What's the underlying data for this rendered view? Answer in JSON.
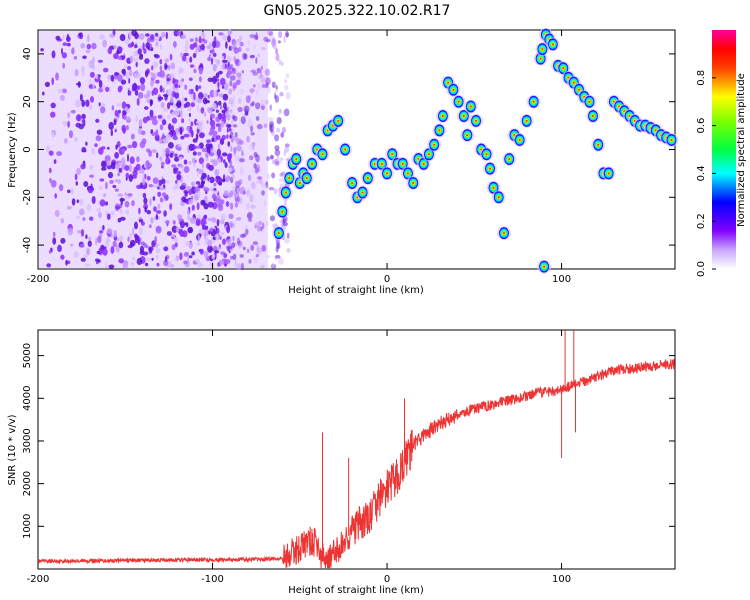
{
  "title": "GN05.2025.322.10.02.R17",
  "chart_data": [
    {
      "type": "heatmap",
      "xlabel": "Height of straight line (km)",
      "ylabel": "Frequency (Hz)",
      "xlim": [
        -200,
        165
      ],
      "ylim": [
        -50,
        50
      ],
      "x_ticks": [
        -200,
        -100,
        0,
        100
      ],
      "y_ticks": [
        -40,
        -20,
        0,
        20,
        40
      ],
      "colorbar": {
        "label": "Normalized spectral amplitude",
        "range": [
          0,
          1
        ],
        "ticks": [
          0,
          0.2,
          0.4,
          0.6,
          0.8
        ],
        "tick_labels": [
          "0.0",
          "0.2",
          "0.4",
          "0.6",
          "0.8"
        ],
        "colors": [
          "#ffffff",
          "#8000ff",
          "#0000ff",
          "#00ffff",
          "#00ff00",
          "#ffff00",
          "#ff0000",
          "#ff00ff"
        ]
      },
      "noise_region_x": [
        -200,
        -62
      ],
      "ridge": [
        {
          "x": -62,
          "f": -35
        },
        {
          "x": -60,
          "f": -26
        },
        {
          "x": -58,
          "f": -18
        },
        {
          "x": -56,
          "f": -12
        },
        {
          "x": -54,
          "f": -6
        },
        {
          "x": -52,
          "f": -4
        },
        {
          "x": -50,
          "f": -14
        },
        {
          "x": -48,
          "f": -10
        },
        {
          "x": -46,
          "f": -12
        },
        {
          "x": -43,
          "f": -6
        },
        {
          "x": -40,
          "f": 0
        },
        {
          "x": -37,
          "f": -2
        },
        {
          "x": -34,
          "f": 8
        },
        {
          "x": -31,
          "f": 10
        },
        {
          "x": -28,
          "f": 12
        },
        {
          "x": -24,
          "f": 0
        },
        {
          "x": -20,
          "f": -14
        },
        {
          "x": -17,
          "f": -20
        },
        {
          "x": -14,
          "f": -18
        },
        {
          "x": -11,
          "f": -12
        },
        {
          "x": -7,
          "f": -6
        },
        {
          "x": -3,
          "f": -6
        },
        {
          "x": 0,
          "f": -10
        },
        {
          "x": 3,
          "f": -2
        },
        {
          "x": 6,
          "f": -6
        },
        {
          "x": 9,
          "f": -6
        },
        {
          "x": 12,
          "f": -10
        },
        {
          "x": 15,
          "f": -14
        },
        {
          "x": 18,
          "f": -4
        },
        {
          "x": 21,
          "f": -6
        },
        {
          "x": 24,
          "f": -2
        },
        {
          "x": 27,
          "f": 2
        },
        {
          "x": 30,
          "f": 8
        },
        {
          "x": 32,
          "f": 14
        },
        {
          "x": 35,
          "f": 28
        },
        {
          "x": 38,
          "f": 25
        },
        {
          "x": 41,
          "f": 20
        },
        {
          "x": 44,
          "f": 14
        },
        {
          "x": 46,
          "f": 6
        },
        {
          "x": 48,
          "f": 18
        },
        {
          "x": 51,
          "f": 12
        },
        {
          "x": 54,
          "f": 0
        },
        {
          "x": 57,
          "f": -2
        },
        {
          "x": 59,
          "f": -8
        },
        {
          "x": 61,
          "f": -16
        },
        {
          "x": 64,
          "f": -20
        },
        {
          "x": 67,
          "f": -35
        },
        {
          "x": 70,
          "f": -4
        },
        {
          "x": 73,
          "f": 6
        },
        {
          "x": 76,
          "f": 4
        },
        {
          "x": 80,
          "f": 12
        },
        {
          "x": 84,
          "f": 20
        },
        {
          "x": 88,
          "f": 38
        },
        {
          "x": 91,
          "f": 48
        },
        {
          "x": 93,
          "f": 46
        },
        {
          "x": 95,
          "f": 44
        },
        {
          "x": 98,
          "f": 35
        },
        {
          "x": 101,
          "f": 34
        },
        {
          "x": 104,
          "f": 30
        },
        {
          "x": 107,
          "f": 28
        },
        {
          "x": 110,
          "f": 25
        },
        {
          "x": 113,
          "f": 22
        },
        {
          "x": 116,
          "f": 20
        },
        {
          "x": 118,
          "f": 14
        },
        {
          "x": 121,
          "f": 2
        },
        {
          "x": 124,
          "f": -10
        },
        {
          "x": 127,
          "f": -10
        },
        {
          "x": 130,
          "f": 20
        },
        {
          "x": 133,
          "f": 18
        },
        {
          "x": 136,
          "f": 16
        },
        {
          "x": 139,
          "f": 14
        },
        {
          "x": 142,
          "f": 12
        },
        {
          "x": 145,
          "f": 10
        },
        {
          "x": 148,
          "f": 10
        },
        {
          "x": 151,
          "f": 9
        },
        {
          "x": 154,
          "f": 8
        },
        {
          "x": 157,
          "f": 6
        },
        {
          "x": 160,
          "f": 5
        },
        {
          "x": 163,
          "f": 4
        }
      ],
      "ridge_extra": [
        {
          "x": 90,
          "f": -49
        },
        {
          "x": 89,
          "f": 42
        }
      ]
    },
    {
      "type": "line",
      "xlabel": "Height of straight line (km)",
      "ylabel": "SNR (10 * v/v)",
      "xlim": [
        -200,
        165
      ],
      "ylim": [
        0,
        5600
      ],
      "x_ticks": [
        -200,
        -100,
        0,
        100
      ],
      "y_ticks": [
        1000,
        2000,
        3000,
        4000,
        5000
      ],
      "line_color": "#ee3333",
      "series_points": [
        [
          -200,
          180
        ],
        [
          -150,
          200
        ],
        [
          -100,
          220
        ],
        [
          -70,
          230
        ],
        [
          -60,
          260
        ],
        [
          -55,
          350
        ],
        [
          -50,
          500
        ],
        [
          -45,
          650
        ],
        [
          -40,
          600
        ],
        [
          -38,
          250
        ],
        [
          -32,
          280
        ],
        [
          -25,
          600
        ],
        [
          -20,
          900
        ],
        [
          -10,
          1200
        ],
        [
          -5,
          1600
        ],
        [
          0,
          1900
        ],
        [
          5,
          2100
        ],
        [
          10,
          2500
        ],
        [
          15,
          2900
        ],
        [
          20,
          3100
        ],
        [
          30,
          3400
        ],
        [
          40,
          3600
        ],
        [
          50,
          3750
        ],
        [
          60,
          3850
        ],
        [
          70,
          3950
        ],
        [
          80,
          4050
        ],
        [
          90,
          4150
        ],
        [
          100,
          4200
        ],
        [
          110,
          4350
        ],
        [
          120,
          4500
        ],
        [
          130,
          4650
        ],
        [
          140,
          4700
        ],
        [
          150,
          4750
        ],
        [
          160,
          4800
        ],
        [
          165,
          4800
        ]
      ],
      "spikes": [
        {
          "x": -37,
          "y": 3200
        },
        {
          "x": -22,
          "y": 2600
        },
        {
          "x": 10,
          "y": 4000
        },
        {
          "x": 100,
          "y": 2600
        },
        {
          "x": 102,
          "y": 5600
        },
        {
          "x": 107,
          "y": 5600
        },
        {
          "x": 108,
          "y": 3200
        }
      ]
    }
  ]
}
